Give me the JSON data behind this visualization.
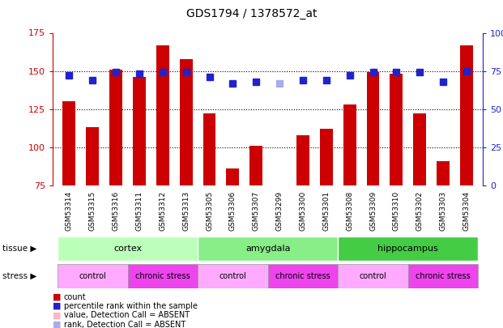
{
  "title": "GDS1794 / 1378572_at",
  "samples": [
    "GSM53314",
    "GSM53315",
    "GSM53316",
    "GSM53311",
    "GSM53312",
    "GSM53313",
    "GSM53305",
    "GSM53306",
    "GSM53307",
    "GSM53299",
    "GSM53300",
    "GSM53301",
    "GSM53308",
    "GSM53309",
    "GSM53310",
    "GSM53302",
    "GSM53303",
    "GSM53304"
  ],
  "bar_values": [
    130,
    113,
    151,
    146,
    167,
    158,
    122,
    86,
    101,
    75,
    108,
    112,
    128,
    149,
    148,
    122,
    91,
    167
  ],
  "bar_colors": [
    "#cc0000",
    "#cc0000",
    "#cc0000",
    "#cc0000",
    "#cc0000",
    "#cc0000",
    "#cc0000",
    "#cc0000",
    "#cc0000",
    "#ffb6c1",
    "#cc0000",
    "#cc0000",
    "#cc0000",
    "#cc0000",
    "#cc0000",
    "#cc0000",
    "#cc0000",
    "#cc0000"
  ],
  "rank_values": [
    72,
    69,
    74,
    73,
    74,
    74,
    71,
    67,
    68,
    67,
    69,
    69,
    72,
    74,
    74,
    74,
    68,
    75
  ],
  "rank_colors": [
    "#2222cc",
    "#2222cc",
    "#2222cc",
    "#2222cc",
    "#2222cc",
    "#2222cc",
    "#2222cc",
    "#2222cc",
    "#2222cc",
    "#aaaaee",
    "#2222cc",
    "#2222cc",
    "#2222cc",
    "#2222cc",
    "#2222cc",
    "#2222cc",
    "#2222cc",
    "#2222cc"
  ],
  "ylim_left": [
    75,
    175
  ],
  "ylim_right": [
    0,
    100
  ],
  "yticks_left": [
    75,
    100,
    125,
    150,
    175
  ],
  "yticks_right": [
    0,
    25,
    50,
    75,
    100
  ],
  "tissue_groups": [
    {
      "label": "cortex",
      "start": 0,
      "end": 6,
      "color": "#bbffbb"
    },
    {
      "label": "amygdala",
      "start": 6,
      "end": 12,
      "color": "#88ee88"
    },
    {
      "label": "hippocampus",
      "start": 12,
      "end": 18,
      "color": "#44cc44"
    }
  ],
  "stress_groups": [
    {
      "label": "control",
      "start": 0,
      "end": 3,
      "color": "#ffaaff"
    },
    {
      "label": "chronic stress",
      "start": 3,
      "end": 6,
      "color": "#ee44ee"
    },
    {
      "label": "control",
      "start": 6,
      "end": 9,
      "color": "#ffaaff"
    },
    {
      "label": "chronic stress",
      "start": 9,
      "end": 12,
      "color": "#ee44ee"
    },
    {
      "label": "control",
      "start": 12,
      "end": 15,
      "color": "#ffaaff"
    },
    {
      "label": "chronic stress",
      "start": 15,
      "end": 18,
      "color": "#ee44ee"
    }
  ],
  "legend_colors": [
    "#cc0000",
    "#2222cc",
    "#ffb6c1",
    "#aaaaee"
  ],
  "legend_labels": [
    "count",
    "percentile rank within the sample",
    "value, Detection Call = ABSENT",
    "rank, Detection Call = ABSENT"
  ],
  "bar_width": 0.55,
  "rank_marker_size": 6,
  "xticklabel_bg": "#d8d8d8"
}
